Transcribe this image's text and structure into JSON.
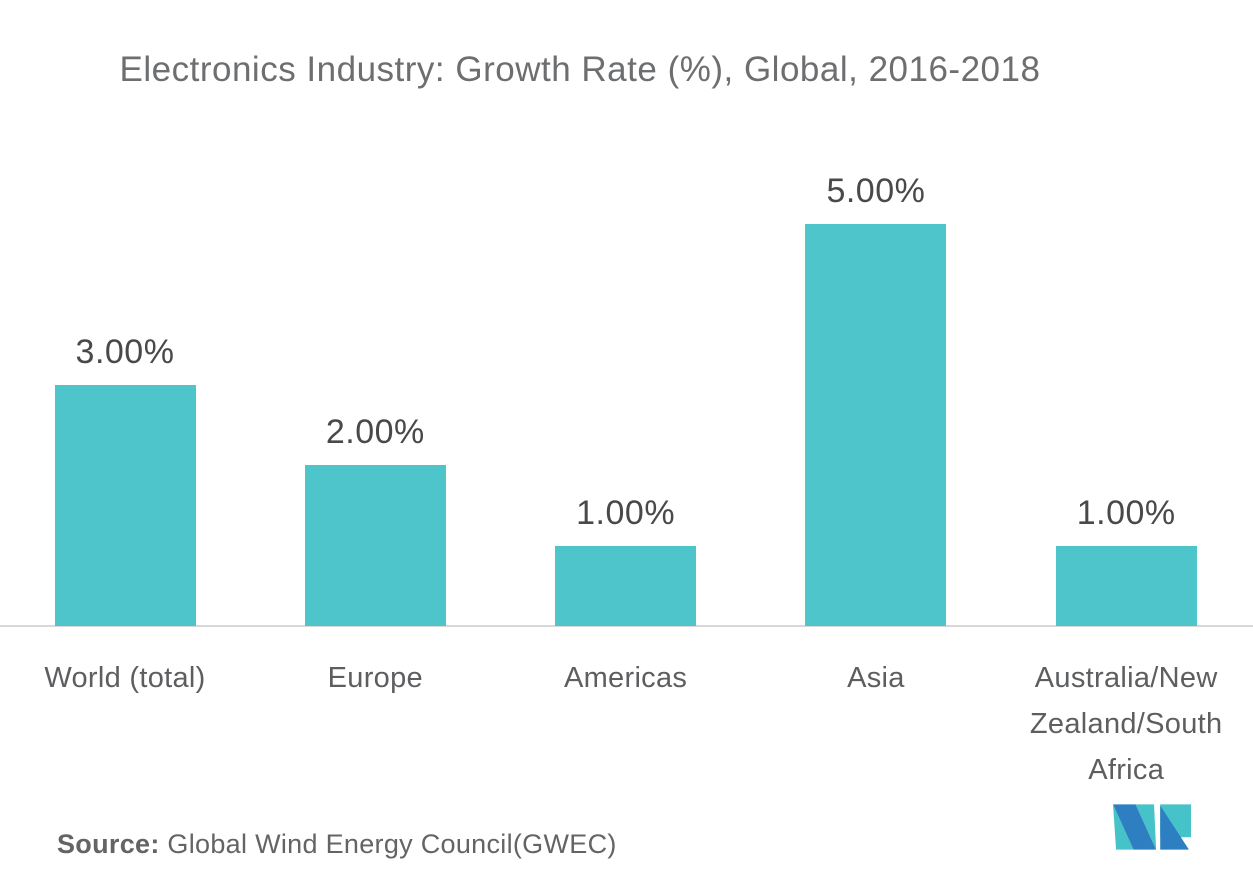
{
  "chart_data": {
    "type": "bar",
    "title": "Electronics Industry: Growth Rate (%), Global, 2016-2018",
    "categories": [
      "World (total)",
      "Europe",
      "Americas",
      "Asia",
      "Australia/New Zealand/South Africa"
    ],
    "values": [
      3.0,
      2.0,
      1.0,
      5.0,
      1.0
    ],
    "value_labels": [
      "3.00%",
      "2.00%",
      "1.00%",
      "5.00%",
      "1.00%"
    ],
    "unit": "%",
    "ylim": [
      0,
      5.5
    ],
    "grid": false,
    "legend": false,
    "bar_color": "#4ec5cb",
    "axis_color": "#d8d8d8",
    "value_label_color": "#48494b",
    "category_label_color": "#5d5e60",
    "title_color": "#6d6e70"
  },
  "source": {
    "prefix": "Source:",
    "text": " Global Wind Energy Council(GWEC)"
  },
  "logo": {
    "name": "mordor-intelligence-logo",
    "teal": "#46c3c8",
    "blue": "#2e7fc2"
  }
}
